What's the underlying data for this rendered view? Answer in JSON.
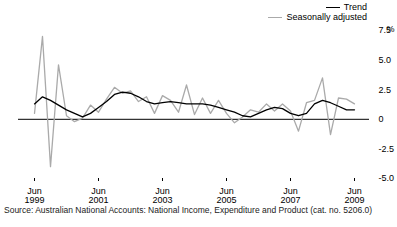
{
  "chart_data": {
    "type": "line",
    "ylabel": "%",
    "caption": "Source: Australian National Accounts: National Income, Expenditure and Product (cat. no. 5206.0)",
    "legend": "top-right",
    "categories": [
      "Jun 1999",
      null,
      null,
      null,
      null,
      null,
      null,
      null,
      "Jun 2001",
      null,
      null,
      null,
      null,
      null,
      null,
      null,
      "Jun 2003",
      null,
      null,
      null,
      null,
      null,
      null,
      null,
      "Jun 2005",
      null,
      null,
      null,
      null,
      null,
      null,
      null,
      "Jun 2007",
      null,
      null,
      null,
      null,
      null,
      null,
      null,
      "Jun 2009"
    ],
    "ylim": [
      -5,
      7.5
    ],
    "yticks": [
      {
        "value": -5,
        "label": "-5.0"
      },
      {
        "value": -2.5,
        "label": "-2.5"
      },
      0,
      {
        "value": 2.5,
        "label": "2.5"
      },
      {
        "value": 5,
        "label": "5.0"
      },
      {
        "value": 7.5,
        "label": "7.5"
      }
    ],
    "series": [
      {
        "name": "Trend",
        "color": "#000000",
        "values": [
          1.3,
          1.9,
          1.6,
          1.2,
          0.8,
          0.5,
          0.2,
          0.5,
          1.0,
          1.5,
          2.1,
          2.3,
          2.2,
          1.9,
          1.5,
          1.3,
          1.4,
          1.5,
          1.4,
          1.3,
          1.3,
          1.3,
          1.2,
          1.0,
          0.8,
          0.6,
          0.3,
          0.2,
          0.5,
          0.8,
          1.0,
          0.9,
          0.5,
          0.3,
          0.5,
          1.3,
          1.6,
          1.4,
          1.1,
          0.8,
          0.8
        ]
      },
      {
        "name": "Seasonally adjusted",
        "color": "#aaaaaa",
        "values": [
          0.5,
          7.0,
          -4.0,
          4.6,
          0.3,
          -0.2,
          0.1,
          1.2,
          0.6,
          1.7,
          2.7,
          2.2,
          2.4,
          1.5,
          1.9,
          0.5,
          2.0,
          1.6,
          0.6,
          2.9,
          0.4,
          1.8,
          0.5,
          1.6,
          0.5,
          -0.3,
          0.2,
          0.8,
          0.6,
          1.3,
          0.7,
          1.3,
          0.7,
          -1.0,
          1.4,
          1.6,
          3.5,
          -1.3,
          1.8,
          1.7,
          1.3
        ]
      }
    ]
  }
}
